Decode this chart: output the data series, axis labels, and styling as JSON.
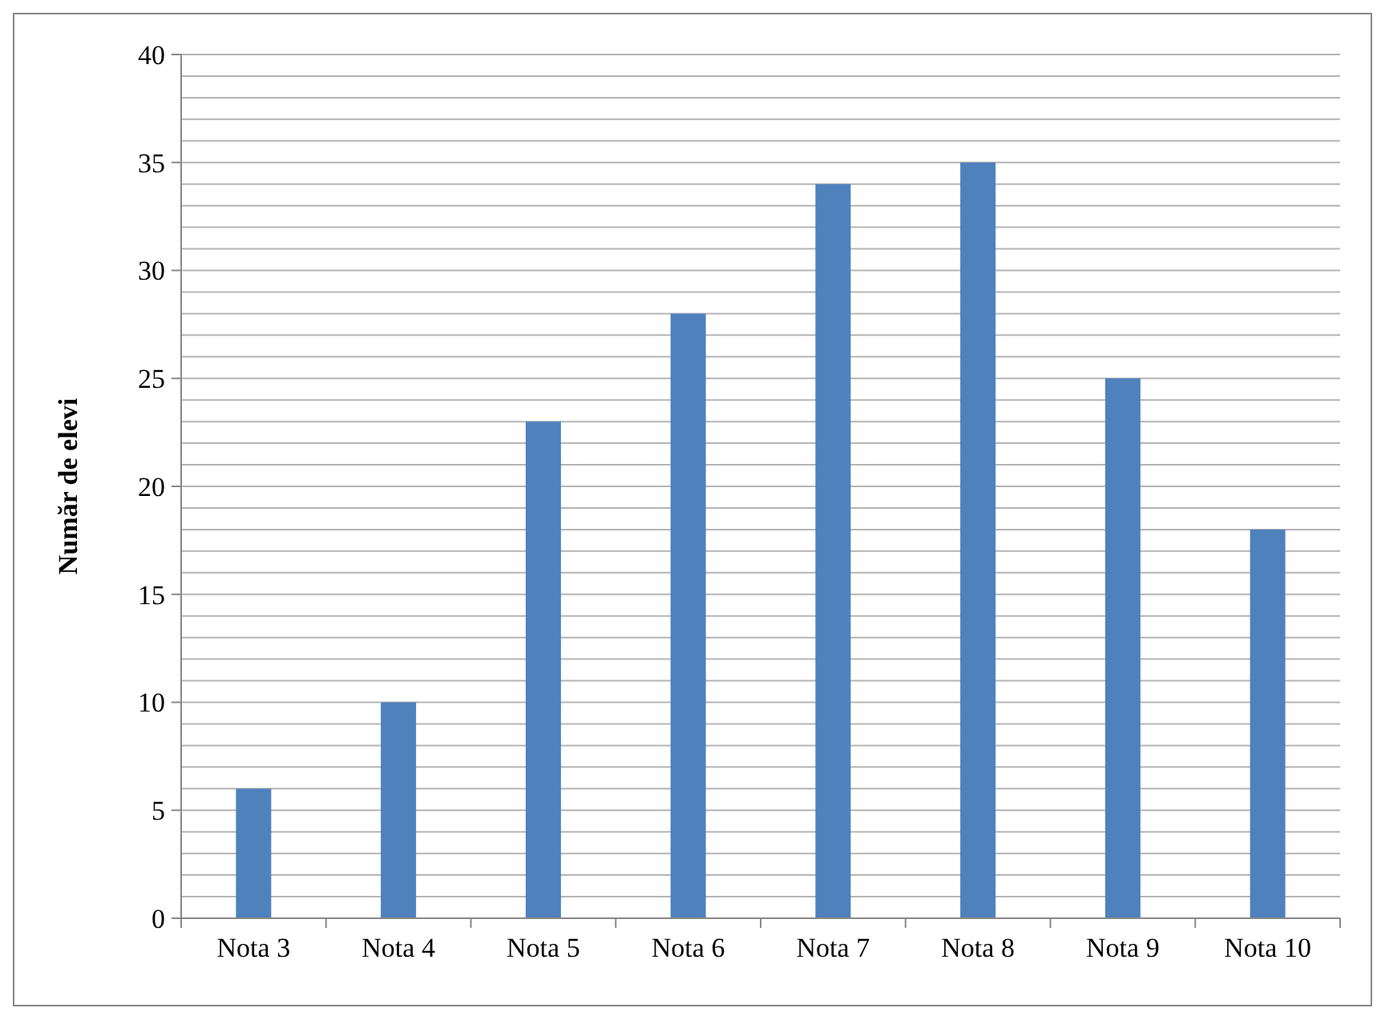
{
  "chart_data": {
    "type": "bar",
    "ylabel": "Număr de elevi",
    "categories": [
      "Nota 3",
      "Nota 4",
      "Nota 5",
      "Nota 6",
      "Nota 7",
      "Nota 8",
      "Nota 9",
      "Nota 10"
    ],
    "values": [
      6,
      10,
      23,
      28,
      34,
      35,
      25,
      18
    ],
    "color": "#4f81bd",
    "ylim": [
      0,
      40
    ],
    "yticks": [
      0,
      {
        "value": 1,
        "label": null
      },
      {
        "value": 2,
        "label": null
      },
      {
        "value": 3,
        "label": null
      },
      {
        "value": 4,
        "label": null
      },
      5,
      {
        "value": 6,
        "label": null
      },
      {
        "value": 7,
        "label": null
      },
      {
        "value": 8,
        "label": null
      },
      {
        "value": 9,
        "label": null
      },
      10,
      {
        "value": 11,
        "label": null
      },
      {
        "value": 12,
        "label": null
      },
      {
        "value": 13,
        "label": null
      },
      {
        "value": 14,
        "label": null
      },
      15,
      {
        "value": 16,
        "label": null
      },
      {
        "value": 17,
        "label": null
      },
      {
        "value": 18,
        "label": null
      },
      {
        "value": 19,
        "label": null
      },
      20,
      {
        "value": 21,
        "label": null
      },
      {
        "value": 22,
        "label": null
      },
      {
        "value": 23,
        "label": null
      },
      {
        "value": 24,
        "label": null
      },
      25,
      {
        "value": 26,
        "label": null
      },
      {
        "value": 27,
        "label": null
      },
      {
        "value": 28,
        "label": null
      },
      {
        "value": 29,
        "label": null
      },
      30,
      {
        "value": 31,
        "label": null
      },
      {
        "value": 32,
        "label": null
      },
      {
        "value": 33,
        "label": null
      },
      {
        "value": 34,
        "label": null
      },
      35,
      {
        "value": 36,
        "label": null
      },
      {
        "value": 37,
        "label": null
      },
      {
        "value": 38,
        "label": null
      },
      {
        "value": 39,
        "label": null
      },
      40
    ],
    "grid": "y"
  }
}
